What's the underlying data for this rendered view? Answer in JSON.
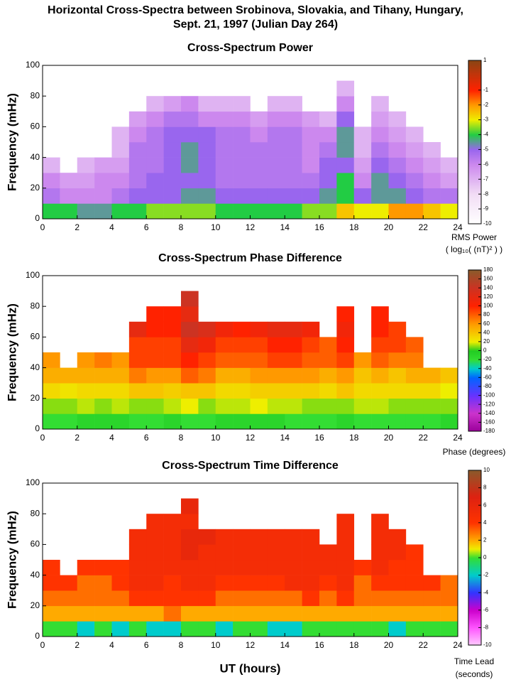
{
  "title": [
    "Horizontal Cross-Spectra between Srobinova, Slovakia, and Tihany, Hungary,",
    "Sept. 21, 1997 (Julian Day 264)"
  ],
  "chart_data": [
    {
      "type": "heatmap",
      "title": "Cross-Spectrum Power",
      "ylabel": "Frequency (mHz)",
      "xlim": [
        0,
        24
      ],
      "xticks": [
        0,
        2,
        4,
        6,
        8,
        10,
        12,
        14,
        16,
        18,
        20,
        22,
        24
      ],
      "ylim": [
        0,
        100
      ],
      "yticks": [
        0,
        20,
        40,
        60,
        80,
        100
      ],
      "xbins": [
        0,
        1,
        2,
        3,
        4,
        5,
        6,
        7,
        8,
        9,
        10,
        11,
        12,
        13,
        14,
        15,
        16,
        17,
        18,
        19,
        20,
        21,
        22,
        23,
        24
      ],
      "ybins": [
        0,
        10,
        20,
        30,
        40,
        50,
        60,
        70,
        80,
        90,
        100
      ],
      "z": [
        [
          -4,
          -4,
          -4.5,
          -4.5,
          -4,
          -4,
          -3.5,
          -3.5,
          -3.5,
          -3.5,
          -4,
          -4,
          -4,
          -4,
          -4,
          -3.5,
          -3.5,
          -2.5,
          -3,
          -3,
          -2,
          -2,
          -2.5,
          -3
        ],
        [
          -5.5,
          -6,
          -6,
          -6,
          -5.5,
          -5,
          -5,
          -5,
          -4.5,
          -4.5,
          -5,
          -5,
          -5,
          -5,
          -5,
          -5,
          -4.5,
          -4,
          -5,
          -4.5,
          -4.5,
          -5,
          -5.5,
          -5.5
        ],
        [
          -6,
          -6.5,
          -6.5,
          -6,
          -6,
          -5.5,
          -5,
          -5,
          -5,
          -5,
          -5.5,
          -5.5,
          -5.5,
          -5.5,
          -5.5,
          -5.5,
          -5,
          -4,
          -6,
          -4.5,
          -5,
          -5.5,
          -6,
          -6.5
        ],
        [
          -7,
          null,
          -7,
          -6.5,
          -6.5,
          -5.5,
          -5.5,
          -5,
          -4.5,
          -5,
          -5.5,
          -5.5,
          -5.5,
          -5.5,
          -5.5,
          -6,
          -5,
          -5,
          -6.5,
          -5,
          -5.5,
          -6,
          -6.5,
          -7
        ],
        [
          null,
          null,
          null,
          null,
          -7,
          -5.5,
          -5.5,
          -5,
          -4.5,
          -5,
          -5.5,
          -5.5,
          -5.5,
          -5.5,
          -5.5,
          -6,
          -5.5,
          -4.5,
          -7,
          -5.5,
          -6,
          -6.5,
          -7,
          null
        ],
        [
          null,
          null,
          null,
          null,
          -7,
          -6,
          -5.5,
          -5,
          -5,
          -5,
          -5.5,
          -5.5,
          -6,
          -5.5,
          -5.5,
          -6,
          -6,
          -4.5,
          -7,
          -6,
          -6.5,
          -7,
          null,
          null
        ],
        [
          null,
          null,
          null,
          null,
          null,
          -6.5,
          -6,
          -5.5,
          -5.5,
          -6,
          -6,
          -6,
          -6.5,
          -6,
          -6,
          -6.5,
          -7,
          -5,
          null,
          -6.5,
          -7,
          null,
          null,
          null
        ],
        [
          null,
          null,
          null,
          null,
          null,
          null,
          -7,
          -6.5,
          -6,
          -7,
          -7,
          -7,
          null,
          -7,
          -7,
          null,
          null,
          -6,
          null,
          -7,
          null,
          null,
          null,
          null
        ],
        [
          null,
          null,
          null,
          null,
          null,
          null,
          null,
          null,
          null,
          null,
          null,
          null,
          null,
          null,
          null,
          null,
          null,
          -7,
          null,
          null,
          null,
          null,
          null,
          null
        ],
        [
          null,
          null,
          null,
          null,
          null,
          null,
          null,
          null,
          null,
          null,
          null,
          null,
          null,
          null,
          null,
          null,
          null,
          null,
          null,
          null,
          null,
          null,
          null,
          null
        ]
      ],
      "clim": [
        -10,
        1
      ],
      "colorbar_ticks": [
        1,
        -1,
        -2,
        -3,
        -4,
        -5,
        -6,
        -7,
        -8,
        -9,
        -10
      ],
      "colorbar_label": [
        "RMS Power",
        "( log₁₀( (nT)² ) )"
      ],
      "colorscale": [
        [
          -10,
          "#ffffff"
        ],
        [
          -8,
          "#f2ddf5"
        ],
        [
          -6,
          "#cc88ee"
        ],
        [
          -5,
          "#9966ee"
        ],
        [
          -4,
          "#22cc44"
        ],
        [
          -3,
          "#eeee00"
        ],
        [
          -2,
          "#ff9900"
        ],
        [
          -1,
          "#ff2200"
        ],
        [
          1,
          "#8b4513"
        ]
      ]
    },
    {
      "type": "heatmap",
      "title": "Cross-Spectrum Phase Difference",
      "ylabel": "Frequency (mHz)",
      "xlim": [
        0,
        24
      ],
      "xticks": [
        0,
        2,
        4,
        6,
        8,
        10,
        12,
        14,
        16,
        18,
        20,
        22,
        24
      ],
      "ylim": [
        0,
        100
      ],
      "yticks": [
        0,
        20,
        40,
        60,
        80,
        100
      ],
      "xbins": [
        0,
        1,
        2,
        3,
        4,
        5,
        6,
        7,
        8,
        9,
        10,
        11,
        12,
        13,
        14,
        15,
        16,
        17,
        18,
        19,
        20,
        21,
        22,
        23,
        24
      ],
      "ybins": [
        0,
        10,
        20,
        30,
        40,
        50,
        60,
        70,
        80,
        90,
        100
      ],
      "z": [
        [
          -20,
          -20,
          -10,
          -10,
          -10,
          -20,
          -20,
          -10,
          -20,
          -20,
          -10,
          -10,
          -10,
          -10,
          -20,
          -20,
          -20,
          -10,
          -20,
          -20,
          -20,
          -20,
          -20,
          -10
        ],
        [
          10,
          10,
          15,
          10,
          15,
          10,
          10,
          15,
          20,
          10,
          15,
          15,
          20,
          15,
          15,
          10,
          10,
          10,
          15,
          15,
          10,
          10,
          10,
          10
        ],
        [
          30,
          25,
          30,
          30,
          30,
          40,
          40,
          35,
          40,
          40,
          30,
          30,
          35,
          35,
          35,
          35,
          30,
          40,
          30,
          30,
          30,
          30,
          30,
          20
        ],
        [
          50,
          50,
          50,
          50,
          50,
          70,
          60,
          60,
          80,
          70,
          50,
          50,
          60,
          60,
          60,
          60,
          50,
          60,
          40,
          50,
          40,
          50,
          50,
          40
        ],
        [
          60,
          null,
          60,
          70,
          60,
          90,
          90,
          90,
          100,
          90,
          80,
          80,
          80,
          90,
          90,
          80,
          80,
          90,
          60,
          80,
          70,
          70,
          null,
          null
        ],
        [
          null,
          null,
          null,
          null,
          null,
          90,
          90,
          90,
          120,
          110,
          90,
          90,
          90,
          100,
          100,
          90,
          80,
          100,
          null,
          90,
          90,
          80,
          null,
          null
        ],
        [
          null,
          null,
          null,
          null,
          null,
          120,
          100,
          100,
          140,
          130,
          110,
          100,
          110,
          120,
          120,
          110,
          null,
          110,
          null,
          100,
          90,
          null,
          null,
          null
        ],
        [
          null,
          null,
          null,
          null,
          null,
          null,
          100,
          100,
          120,
          null,
          null,
          null,
          null,
          null,
          null,
          null,
          null,
          100,
          null,
          100,
          null,
          null,
          null,
          null
        ],
        [
          null,
          null,
          null,
          null,
          null,
          null,
          null,
          null,
          140,
          null,
          null,
          null,
          null,
          null,
          null,
          null,
          null,
          null,
          null,
          null,
          null,
          null,
          null,
          null
        ],
        [
          null,
          null,
          null,
          null,
          null,
          null,
          null,
          null,
          null,
          null,
          null,
          null,
          null,
          null,
          null,
          null,
          null,
          null,
          null,
          null,
          null,
          null,
          null,
          null
        ]
      ],
      "clim": [
        -180,
        180
      ],
      "colorbar_ticks": [
        180,
        160,
        140,
        120,
        100,
        80,
        60,
        40,
        20,
        0,
        -20,
        -40,
        -60,
        -80,
        -100,
        -120,
        -140,
        -160,
        -180
      ],
      "colorbar_label": [
        "Phase (degrees)"
      ],
      "colorscale": [
        [
          -180,
          "#990099"
        ],
        [
          -140,
          "#cc33cc"
        ],
        [
          -100,
          "#6633ff"
        ],
        [
          -60,
          "#0066ff"
        ],
        [
          -40,
          "#00cccc"
        ],
        [
          -20,
          "#33dd33"
        ],
        [
          0,
          "#22cc22"
        ],
        [
          20,
          "#eeee00"
        ],
        [
          60,
          "#ff9900"
        ],
        [
          100,
          "#ff2200"
        ],
        [
          140,
          "#cc3322"
        ],
        [
          180,
          "#8b5a2b"
        ]
      ]
    },
    {
      "type": "heatmap",
      "title": "Cross-Spectrum Time Difference",
      "ylabel": "Frequency (mHz)",
      "xlabel": "UT (hours)",
      "xlim": [
        0,
        24
      ],
      "xticks": [
        0,
        2,
        4,
        6,
        8,
        10,
        12,
        14,
        16,
        18,
        20,
        22,
        24
      ],
      "ylim": [
        0,
        100
      ],
      "yticks": [
        0,
        20,
        40,
        60,
        80,
        100
      ],
      "xbins": [
        0,
        1,
        2,
        3,
        4,
        5,
        6,
        7,
        8,
        9,
        10,
        11,
        12,
        13,
        14,
        15,
        16,
        17,
        18,
        19,
        20,
        21,
        22,
        23,
        24
      ],
      "ybins": [
        0,
        10,
        20,
        30,
        40,
        50,
        60,
        70,
        80,
        90,
        100
      ],
      "z": [
        [
          0,
          0,
          -2,
          0,
          -2,
          0,
          -2,
          -2,
          0,
          0,
          -2,
          0,
          0,
          -2,
          -2,
          0,
          0,
          0,
          0,
          0,
          -2,
          0,
          0,
          0
        ],
        [
          2,
          2,
          2,
          2,
          2,
          2,
          2,
          3,
          2,
          2,
          2,
          2,
          2,
          2,
          2,
          2,
          2,
          2,
          2,
          2,
          2,
          2,
          2,
          2
        ],
        [
          3,
          3,
          3,
          3,
          3,
          4,
          4,
          4,
          4,
          4,
          3,
          3,
          3,
          3,
          3,
          4,
          3,
          4,
          3,
          3,
          3,
          3,
          3,
          3
        ],
        [
          4,
          4,
          3,
          3,
          4,
          5,
          5,
          4,
          5,
          5,
          4,
          4,
          4,
          4,
          5,
          5,
          4,
          5,
          3,
          4,
          4,
          4,
          4,
          3
        ],
        [
          4,
          null,
          4,
          4,
          4,
          5,
          5,
          5,
          5,
          5,
          5,
          5,
          5,
          5,
          5,
          5,
          5,
          5,
          4,
          5,
          4,
          4,
          null,
          null
        ],
        [
          null,
          null,
          null,
          null,
          null,
          5,
          5,
          5,
          6,
          5,
          5,
          5,
          5,
          5,
          5,
          5,
          5,
          5,
          null,
          5,
          5,
          4,
          null,
          null
        ],
        [
          null,
          null,
          null,
          null,
          null,
          5,
          5,
          5,
          6,
          6,
          5,
          5,
          5,
          5,
          5,
          5,
          null,
          5,
          null,
          5,
          5,
          null,
          null,
          null
        ],
        [
          null,
          null,
          null,
          null,
          null,
          null,
          5,
          5,
          5,
          null,
          null,
          null,
          null,
          null,
          null,
          null,
          null,
          5,
          null,
          5,
          null,
          null,
          null,
          null
        ],
        [
          null,
          null,
          null,
          null,
          null,
          null,
          null,
          null,
          6,
          null,
          null,
          null,
          null,
          null,
          null,
          null,
          null,
          null,
          null,
          null,
          null,
          null,
          null,
          null
        ],
        [
          null,
          null,
          null,
          null,
          null,
          null,
          null,
          null,
          null,
          null,
          null,
          null,
          null,
          null,
          null,
          null,
          null,
          null,
          null,
          null,
          null,
          null,
          null,
          null
        ]
      ],
      "clim": [
        -10,
        10
      ],
      "colorbar_ticks": [
        10,
        8,
        6,
        4,
        2,
        0,
        -2,
        -4,
        -6,
        -8,
        -10
      ],
      "colorbar_label": [
        "Time Lead",
        "(seconds)"
      ],
      "colorscale": [
        [
          -10,
          "#ffccff"
        ],
        [
          -8,
          "#ff55ff"
        ],
        [
          -6,
          "#cc00cc"
        ],
        [
          -4,
          "#3333ff"
        ],
        [
          -2,
          "#00cccc"
        ],
        [
          0,
          "#33dd33"
        ],
        [
          1,
          "#eeee00"
        ],
        [
          2,
          "#ffaa00"
        ],
        [
          4,
          "#ff3300"
        ],
        [
          7,
          "#dd2211"
        ],
        [
          10,
          "#8b5a2b"
        ]
      ]
    }
  ]
}
